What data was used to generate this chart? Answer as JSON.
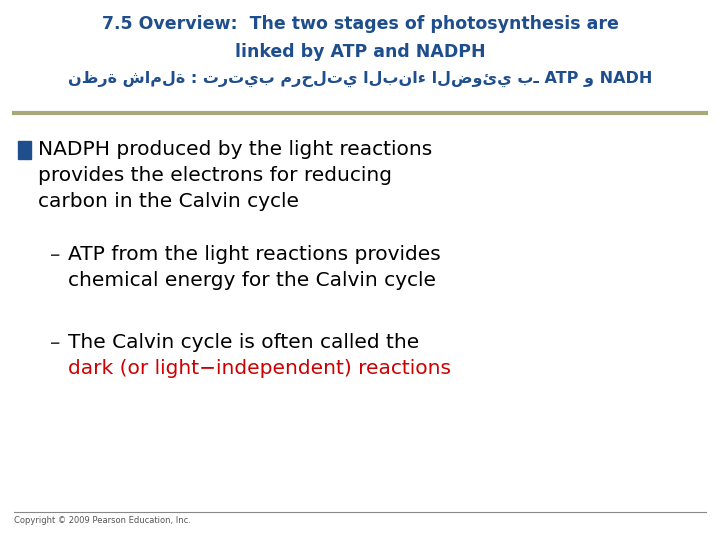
{
  "title_line1": "7.5 Overview:  The two stages of photosynthesis are",
  "title_line2": "linked by ATP and NADPH",
  "title_arabic": "نظرة شاملة : ترتيب مرحلتي البناء الضوئي بـ ATP و NADH",
  "title_color": "#1F4E8C",
  "separator_color": "#A8A878",
  "background_color": "#FFFFFF",
  "bullet_color": "#1F4E8C",
  "bullet_text_color": "#000000",
  "bullet1_line1": "NADPH produced by the light reactions",
  "bullet1_line2": "provides the electrons for reducing",
  "bullet1_line3": "carbon in the Calvin cycle",
  "sub1_line1": "ATP from the light reactions provides",
  "sub1_line2": "chemical energy for the Calvin cycle",
  "sub2_line1": "The Calvin cycle is often called the",
  "sub2_red_text": "dark (or light−independent) reactions",
  "red_color": "#CC0000",
  "copyright": "Copyright © 2009 Pearson Education, Inc.",
  "dash_color": "#333333"
}
